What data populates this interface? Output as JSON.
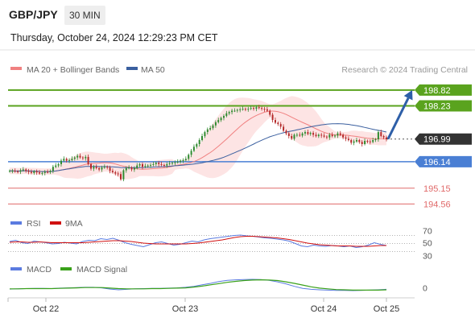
{
  "header": {
    "symbol": "GBP/JPY",
    "timeframe": "30 MIN"
  },
  "datetime": "Thursday, October 24, 2024 12:29:23 PM CET",
  "credit": "Research © 2024 Trading Central",
  "colors": {
    "candle_up": "#2f8a2f",
    "candle_down": "#b52a2a",
    "ma20": "#f08080",
    "bollinger_fill": "#fde4e4",
    "ma50": "#3a5f9f",
    "resistance": "#5aa31e",
    "pivot": "#4a7fd4",
    "support": "#e06a6a",
    "rsi": "#5b7be0",
    "rsi_ma": "#d01010",
    "macd": "#5b7be0",
    "macd_signal": "#3aa11a",
    "arrow": "#2e5fa8",
    "current_bg": "#333333"
  },
  "chart_data": [
    {
      "type": "candlestick",
      "title": "",
      "legend": [
        {
          "name": "MA 20 + Bollinger Bands",
          "color": "#f08080"
        },
        {
          "name": "MA 50",
          "color": "#3a5f9f"
        }
      ],
      "x_ticks": [
        "Oct 22",
        "Oct 23",
        "Oct 24",
        "Oct 25"
      ],
      "ylim": [
        194.3,
        199.3
      ],
      "levels": [
        {
          "value": 198.82,
          "label": "198.82",
          "role": "resistance"
        },
        {
          "value": 198.23,
          "label": "198.23",
          "role": "resistance"
        },
        {
          "value": 196.99,
          "label": "196.99",
          "role": "current"
        },
        {
          "value": 196.14,
          "label": "196.14",
          "role": "pivot"
        },
        {
          "value": 195.15,
          "label": "195.15",
          "role": "support"
        },
        {
          "value": 194.56,
          "label": "194.56",
          "role": "support"
        }
      ],
      "projection": {
        "from": 196.99,
        "to": 198.82
      },
      "close_series": [
        195.8,
        195.8,
        195.78,
        195.77,
        195.82,
        195.85,
        195.8,
        195.76,
        195.72,
        195.78,
        195.74,
        195.7,
        195.72,
        195.76,
        195.75,
        195.8,
        195.95,
        196.0,
        196.05,
        196.18,
        196.25,
        196.18,
        196.2,
        196.25,
        196.3,
        196.36,
        196.3,
        196.27,
        196.32,
        196.05,
        195.88,
        195.95,
        195.9,
        195.85,
        195.92,
        195.95,
        195.92,
        195.8,
        195.75,
        195.7,
        195.68,
        195.48,
        195.82,
        195.9,
        195.92,
        195.85,
        195.9,
        196.0,
        196.05,
        195.95,
        195.98,
        196.0,
        196.02,
        196.05,
        196.1,
        196.05,
        196.02,
        196.0,
        196.05,
        196.08,
        196.1,
        196.12,
        196.14,
        196.18,
        196.2,
        196.25,
        196.4,
        196.55,
        196.7,
        196.8,
        196.95,
        197.1,
        197.25,
        197.35,
        197.4,
        197.5,
        197.62,
        197.7,
        197.78,
        197.85,
        197.95,
        198.0,
        198.05,
        198.05,
        198.08,
        198.1,
        198.12,
        198.1,
        198.12,
        198.15,
        198.12,
        198.18,
        198.15,
        198.12,
        198.1,
        198.05,
        197.9,
        197.7,
        197.6,
        197.55,
        197.45,
        197.3,
        197.2,
        197.1,
        197.0,
        197.15,
        197.15,
        197.12,
        197.2,
        197.25,
        197.18,
        197.22,
        197.15,
        197.1,
        197.15,
        197.12,
        197.08,
        197.05,
        197.15,
        197.1,
        197.12,
        197.2,
        197.15,
        197.05,
        197.0,
        196.95,
        196.85,
        196.9,
        196.95,
        196.88,
        196.8,
        196.92,
        196.9,
        196.88,
        196.95,
        196.98,
        197.25,
        197.1,
        197.05,
        196.99
      ]
    },
    {
      "type": "line",
      "title": "",
      "legend": [
        {
          "name": "RSI",
          "color": "#5b7be0"
        },
        {
          "name": "9MA",
          "color": "#d01010"
        }
      ],
      "y_ticks": [
        "70",
        "50",
        "30"
      ],
      "ylim": [
        25,
        75
      ],
      "series": [
        {
          "name": "RSI",
          "values": [
            55,
            58,
            52,
            50,
            56,
            54,
            52,
            49,
            50,
            53,
            51,
            49,
            55,
            58,
            57,
            62,
            60,
            63,
            58,
            52,
            48,
            45,
            42,
            47,
            52,
            54,
            50,
            46,
            48,
            52,
            56,
            54,
            59,
            62,
            64,
            66,
            68,
            70,
            71,
            69,
            68,
            66,
            64,
            63,
            61,
            59,
            56,
            50,
            44,
            42,
            46,
            44,
            43,
            45,
            44,
            42,
            44,
            40,
            42,
            46,
            52,
            48,
            45
          ]
        },
        {
          "name": "9MA",
          "values": [
            53,
            54,
            54,
            53,
            53,
            54,
            53,
            52,
            52,
            52,
            52,
            52,
            52,
            53,
            54,
            55,
            56,
            57,
            57,
            56,
            55,
            53,
            51,
            50,
            49,
            49,
            49,
            49,
            49,
            49,
            50,
            51,
            53,
            55,
            57,
            59,
            62,
            65,
            67,
            68,
            68,
            67,
            66,
            65,
            64,
            62,
            60,
            57,
            54,
            51,
            49,
            47,
            46,
            45,
            44,
            44,
            44,
            43,
            43,
            43,
            44,
            45,
            45
          ]
        }
      ]
    },
    {
      "type": "line",
      "title": "",
      "legend": [
        {
          "name": "MACD",
          "color": "#5b7be0"
        },
        {
          "name": "MACD Signal",
          "color": "#3aa11a"
        }
      ],
      "y_ticks": [
        "0"
      ],
      "ylim": [
        -0.4,
        0.5
      ],
      "series": [
        {
          "name": "MACD",
          "values": [
            -0.05,
            -0.04,
            -0.03,
            -0.02,
            -0.02,
            -0.03,
            -0.01,
            0.0,
            0.01,
            0.02,
            0.02,
            0.0,
            -0.05,
            -0.08,
            -0.06,
            -0.04,
            -0.03,
            -0.02,
            -0.02,
            -0.01,
            0.0,
            0.02,
            0.06,
            0.12,
            0.18,
            0.25,
            0.3,
            0.32,
            0.33,
            0.34,
            0.33,
            0.3,
            0.24,
            0.16,
            0.06,
            -0.02,
            -0.06,
            -0.08,
            -0.09,
            -0.1,
            -0.1,
            -0.11,
            -0.1,
            -0.09,
            -0.08,
            -0.06
          ]
        },
        {
          "name": "MACD Signal",
          "values": [
            -0.04,
            -0.04,
            -0.03,
            -0.03,
            -0.03,
            -0.03,
            -0.02,
            -0.01,
            0.0,
            0.01,
            0.01,
            0.01,
            -0.01,
            -0.03,
            -0.04,
            -0.04,
            -0.04,
            -0.03,
            -0.03,
            -0.02,
            -0.01,
            0.0,
            0.03,
            0.07,
            0.12,
            0.17,
            0.22,
            0.26,
            0.29,
            0.31,
            0.32,
            0.31,
            0.29,
            0.24,
            0.18,
            0.11,
            0.04,
            -0.01,
            -0.04,
            -0.07,
            -0.08,
            -0.09,
            -0.09,
            -0.09,
            -0.09,
            -0.08
          ]
        }
      ]
    }
  ]
}
